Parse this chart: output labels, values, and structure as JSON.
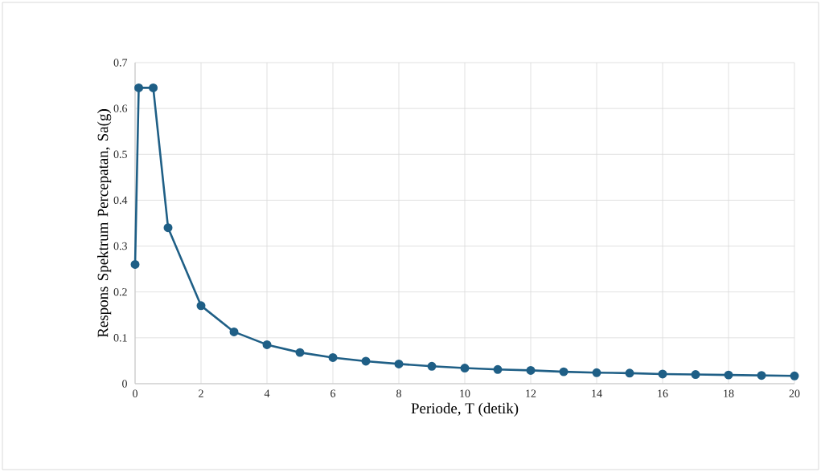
{
  "chart_data": {
    "type": "line",
    "xlabel": "Periode, T (detik)",
    "ylabel": "Respons Spektrum Percepatan, Sa(g)",
    "x": [
      0,
      0.11,
      0.55,
      1,
      2,
      3,
      4,
      5,
      6,
      7,
      8,
      9,
      10,
      11,
      12,
      13,
      14,
      15,
      16,
      17,
      18,
      19,
      20
    ],
    "series": [
      {
        "color": "#1f5f86",
        "values": [
          0.26,
          0.645,
          0.645,
          0.34,
          0.17,
          0.113,
          0.085,
          0.068,
          0.057,
          0.049,
          0.043,
          0.038,
          0.034,
          0.031,
          0.029,
          0.026,
          0.024,
          0.023,
          0.021,
          0.02,
          0.019,
          0.018,
          0.017
        ]
      }
    ],
    "xlim": [
      0,
      20
    ],
    "ylim": [
      0,
      0.7
    ],
    "xticks": [
      0,
      2,
      4,
      6,
      8,
      10,
      12,
      14,
      16,
      18,
      20
    ],
    "yticks": [
      0,
      0.1,
      0.2,
      0.3,
      0.4,
      0.5,
      0.6,
      0.7
    ],
    "grid": true,
    "marker": "circle",
    "line_style": "solid"
  }
}
